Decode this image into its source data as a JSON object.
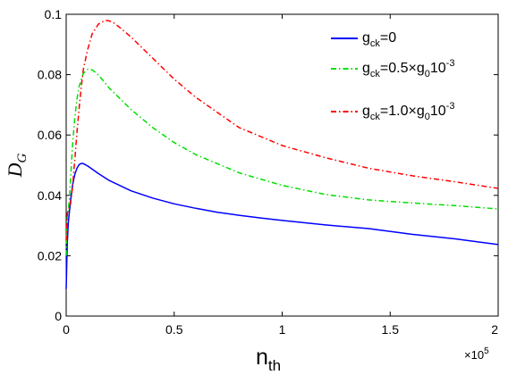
{
  "chart_data": {
    "type": "line",
    "title": "",
    "xlabel": {
      "main": "n",
      "sub": "th"
    },
    "ylabel": {
      "main": "D",
      "sub": "G"
    },
    "x_exponent": {
      "prefix": "×10",
      "power": "5"
    },
    "xlim": [
      0,
      2
    ],
    "ylim": [
      0,
      0.1
    ],
    "xticks": [
      0,
      0.5,
      1,
      1.5,
      2
    ],
    "xtick_labels": [
      "0",
      "0.5",
      "1",
      "1.5",
      "2"
    ],
    "yticks": [
      0,
      0.02,
      0.04,
      0.06,
      0.08,
      0.1
    ],
    "ytick_labels": [
      "0",
      "0.02",
      "0.04",
      "0.06",
      "0.08",
      "0.1"
    ],
    "grid": false,
    "legend_position": "top-right",
    "series": [
      {
        "legend": [
          {
            "t": "g",
            "s": "n"
          },
          {
            "t": "ck",
            "s": "sub"
          },
          {
            "t": "=0",
            "s": "n"
          }
        ],
        "color": "#0000ff",
        "style": "solid",
        "x": [
          0.0,
          0.005,
          0.01,
          0.02,
          0.03,
          0.04,
          0.05,
          0.06,
          0.07,
          0.08,
          0.1,
          0.12,
          0.15,
          0.2,
          0.3,
          0.4,
          0.5,
          0.6,
          0.7,
          0.8,
          0.9,
          1.0,
          1.2,
          1.4,
          1.6,
          1.8,
          2.0
        ],
        "y": [
          0.009,
          0.024,
          0.031,
          0.038,
          0.0435,
          0.047,
          0.049,
          0.0502,
          0.0506,
          0.0505,
          0.0497,
          0.0487,
          0.0472,
          0.0449,
          0.0415,
          0.0391,
          0.0372,
          0.0357,
          0.0344,
          0.0334,
          0.0325,
          0.0317,
          0.0302,
          0.029,
          0.0271,
          0.0256,
          0.0237
        ]
      },
      {
        "legend": [
          {
            "t": "g",
            "s": "n"
          },
          {
            "t": "ck",
            "s": "sub"
          },
          {
            "t": "=0.5×g",
            "s": "n"
          },
          {
            "t": "0",
            "s": "sub"
          },
          {
            "t": "10",
            "s": "n"
          },
          {
            "t": "-3",
            "s": "sup"
          }
        ],
        "color": "#00e000",
        "style": "dashdot",
        "x": [
          0.0,
          0.005,
          0.01,
          0.015,
          0.02,
          0.03,
          0.04,
          0.05,
          0.06,
          0.07,
          0.08,
          0.1,
          0.12,
          0.14,
          0.16,
          0.2,
          0.3,
          0.4,
          0.5,
          0.6,
          0.8,
          1.0,
          1.2,
          1.4,
          1.6,
          1.8,
          2.0
        ],
        "y": [
          0.02,
          0.033,
          0.035,
          0.039,
          0.045,
          0.057,
          0.066,
          0.072,
          0.076,
          0.0785,
          0.0805,
          0.0818,
          0.0816,
          0.0805,
          0.079,
          0.0755,
          0.0685,
          0.0625,
          0.0575,
          0.0535,
          0.0475,
          0.0433,
          0.0403,
          0.0385,
          0.0375,
          0.0366,
          0.0355
        ]
      },
      {
        "legend": [
          {
            "t": "g",
            "s": "n"
          },
          {
            "t": "ck",
            "s": "sub"
          },
          {
            "t": "=1.0×g",
            "s": "n"
          },
          {
            "t": "0",
            "s": "sub"
          },
          {
            "t": "10",
            "s": "n"
          },
          {
            "t": "-3",
            "s": "sup"
          }
        ],
        "color": "#ff0000",
        "style": "dashdot",
        "x": [
          0.0,
          0.005,
          0.01,
          0.02,
          0.03,
          0.04,
          0.05,
          0.06,
          0.07,
          0.08,
          0.1,
          0.12,
          0.15,
          0.18,
          0.2,
          0.22,
          0.25,
          0.3,
          0.4,
          0.5,
          0.6,
          0.8,
          1.0,
          1.2,
          1.4,
          1.6,
          1.8,
          2.0
        ],
        "y": [
          0.025,
          0.034,
          0.035,
          0.037,
          0.043,
          0.052,
          0.061,
          0.069,
          0.076,
          0.082,
          0.0885,
          0.0935,
          0.0968,
          0.098,
          0.0978,
          0.0972,
          0.0955,
          0.0925,
          0.0855,
          0.0785,
          0.0725,
          0.0625,
          0.0565,
          0.0525,
          0.049,
          0.0465,
          0.0445,
          0.0423
        ]
      }
    ]
  }
}
